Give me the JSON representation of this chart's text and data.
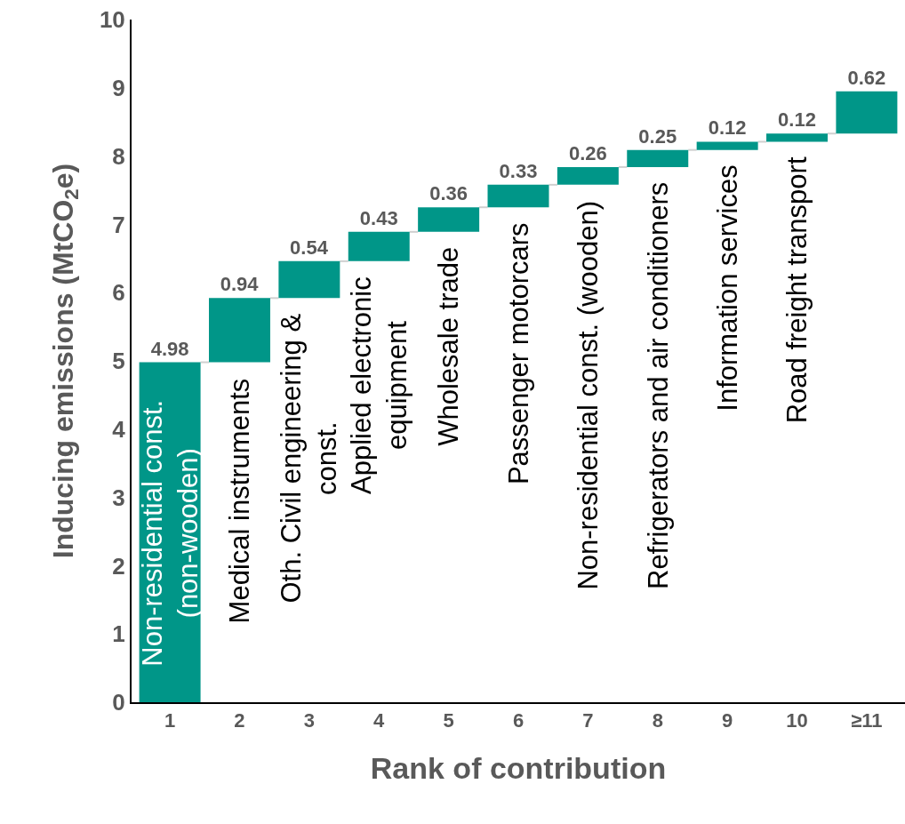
{
  "chart_data": {
    "type": "bar",
    "xlabel": "Rank of contribution",
    "ylabel": "Inducing emissions (MtCO$_{2}$e)",
    "categories": [
      "1",
      "2",
      "3",
      "4",
      "5",
      "6",
      "7",
      "8",
      "9",
      "10",
      "≥11"
    ],
    "values": [
      4.98,
      0.94,
      0.54,
      0.43,
      0.36,
      0.33,
      0.26,
      0.25,
      0.12,
      0.12,
      0.62
    ],
    "base": [
      0,
      4.98,
      5.92,
      6.46,
      6.89,
      7.25,
      7.58,
      7.84,
      8.09,
      8.21,
      8.33
    ],
    "color": "#009688",
    "data_labels": true,
    "ylim": [
      0,
      10
    ],
    "yticks": [
      0,
      1,
      2,
      3,
      4,
      5,
      6,
      7,
      8,
      9,
      10
    ],
    "grid": false,
    "legend": false,
    "annotations": [
      "Non-residential const.\n(non-wooden)",
      "Medical instruments",
      "Oth. Civil engineering &\nconst.",
      "Applied electronic\nequipment",
      "Wholesale trade",
      "Passenger motorcars",
      "Non-residential const. (wooden)",
      "Refrigerators and air conditioners",
      "Information services",
      "Road freight transport"
    ]
  }
}
